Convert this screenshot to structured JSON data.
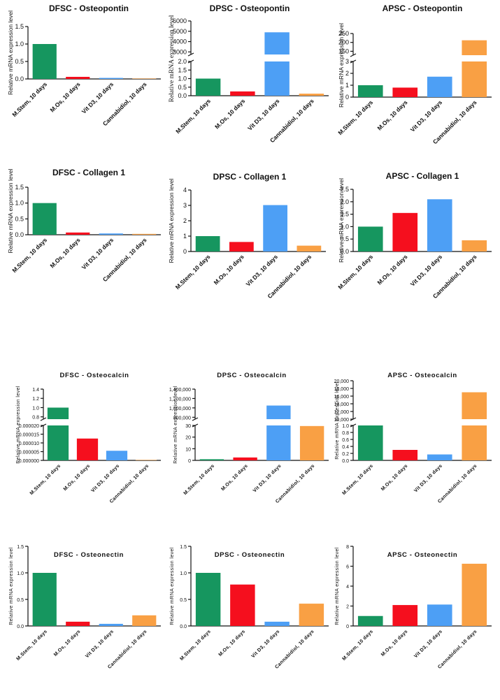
{
  "colors": {
    "M.Stem": "#16965f",
    "M.Os": "#f50f1e",
    "Vit D3": "#4d9ff5",
    "Cannabidiol": "#f9a044"
  },
  "chart_data": [
    {
      "type": "bar",
      "title": "DFSC - Osteopontin",
      "ylabel": "Relative mRNA expression level",
      "categories": [
        "M.Stem, 10 days",
        "M.Os, 10 days",
        "Vit D3, 10 days",
        "Cannabidiol, 10 days"
      ],
      "values": [
        1.0,
        0.06,
        0.03,
        0.0
      ],
      "ylim": [
        0,
        1.5
      ],
      "ticks": [
        {
          "v": 0,
          "t": "0.0"
        },
        {
          "v": 0.5,
          "t": "0.5"
        },
        {
          "v": 1,
          "t": "1.0"
        },
        {
          "v": 1.5,
          "t": "1.5"
        }
      ]
    },
    {
      "type": "bar",
      "title": "DPSC - Osteopontin",
      "ylabel": "Relative mRNA expression level",
      "categories": [
        "M.Stem, 10 days",
        "M.Os, 10 days",
        "Vit D3, 10 days",
        "Cannabidiol, 10 days"
      ],
      "values": [
        1.0,
        0.25,
        4900,
        0.12
      ],
      "ylim": [
        0,
        6000
      ],
      "ticks": [
        {
          "v": 0,
          "t": "0.0"
        },
        {
          "v": 0.5,
          "t": "0.5"
        },
        {
          "v": 1,
          "t": "1.0"
        },
        {
          "v": 1.5,
          "t": "1.5"
        },
        {
          "v": 2,
          "t": "2.0"
        },
        {
          "v": 3000,
          "t": "3000"
        },
        {
          "v": 4000,
          "t": "4000"
        },
        {
          "v": 5000,
          "t": "5000"
        },
        {
          "v": 6000,
          "t": "6000"
        }
      ],
      "axis_break": [
        2,
        2750
      ]
    },
    {
      "type": "bar",
      "title": "APSC - Osteopontin",
      "ylabel": "Relative mRNA expression level",
      "categories": [
        "M.Stem, 10 days",
        "M.Os, 10 days",
        "Vit D3, 10 days",
        "Cannabidiol, 10 days"
      ],
      "values": [
        1.0,
        0.8,
        1.72,
        212
      ],
      "ylim": [
        0,
        250
      ],
      "ticks": [
        {
          "v": 0,
          "t": "0"
        },
        {
          "v": 1,
          "t": "1"
        },
        {
          "v": 2,
          "t": "2"
        },
        {
          "v": 3,
          "t": "3"
        },
        {
          "v": 150,
          "t": "150"
        },
        {
          "v": 200,
          "t": "200"
        },
        {
          "v": 250,
          "t": "250"
        }
      ],
      "axis_break": [
        3,
        128
      ]
    },
    {
      "type": "bar",
      "title": "DFSC - Collagen 1",
      "ylabel": "Relative mRNA expression level",
      "categories": [
        "M.Stem, 10 days",
        "M.Os, 10 days",
        "Vit D3, 10 days",
        "Cannabidiol, 10 days"
      ],
      "values": [
        1.0,
        0.07,
        0.04,
        0.02
      ],
      "ylim": [
        0,
        1.5
      ],
      "ticks": [
        {
          "v": 0,
          "t": "0.0"
        },
        {
          "v": 0.5,
          "t": "0.5"
        },
        {
          "v": 1,
          "t": "1.0"
        },
        {
          "v": 1.5,
          "t": "1.5"
        }
      ]
    },
    {
      "type": "bar",
      "title": "DPSC - Collagen 1",
      "ylabel": "Relative mRNA expression level",
      "categories": [
        "M.Stem, 10 days",
        "M.Os, 10 days",
        "Vit D3, 10 days",
        "Cannabidiol, 10 days"
      ],
      "values": [
        1.0,
        0.62,
        3.02,
        0.38
      ],
      "ylim": [
        0,
        4
      ],
      "ticks": [
        {
          "v": 0,
          "t": "0"
        },
        {
          "v": 1,
          "t": "1"
        },
        {
          "v": 2,
          "t": "2"
        },
        {
          "v": 3,
          "t": "3"
        },
        {
          "v": 4,
          "t": "4"
        }
      ]
    },
    {
      "type": "bar",
      "title": "APSC - Collagen 1",
      "ylabel": "Relative mRNA expression level",
      "categories": [
        "M.Stem, 10 days",
        "M.Os, 10 days",
        "Vit D3, 10 days",
        "Cannabidiol, 10 days"
      ],
      "values": [
        1.0,
        1.55,
        2.1,
        0.45
      ],
      "ylim": [
        0,
        2.5
      ],
      "ticks": [
        {
          "v": 0,
          "t": "0.0"
        },
        {
          "v": 0.5,
          "t": "0.5"
        },
        {
          "v": 1,
          "t": "1.0"
        },
        {
          "v": 1.5,
          "t": "1.5"
        },
        {
          "v": 2,
          "t": "2.0"
        },
        {
          "v": 2.5,
          "t": "2.5"
        }
      ]
    },
    {
      "type": "bar",
      "title": "DFSC - Osteocalcin",
      "ylabel": "Relative mRNA expression level",
      "categories": [
        "M.Stem, 10 days",
        "M.Os, 10 days",
        "Vit D3, 10 days",
        "Cannabidiol, 10 days"
      ],
      "values": [
        1.0,
        1.25e-05,
        5.5e-06,
        0.0
      ],
      "ylim": [
        0,
        1.4
      ],
      "ticks": [
        {
          "v": 0,
          "t": "0.000000"
        },
        {
          "v": 5e-06,
          "t": "0.000005"
        },
        {
          "v": 1e-05,
          "t": "0.000010"
        },
        {
          "v": 1.5e-05,
          "t": "0.000015"
        },
        {
          "v": 2e-05,
          "t": "0.000020"
        },
        {
          "v": 0.8,
          "t": "0.8"
        },
        {
          "v": 1.0,
          "t": "1.0"
        },
        {
          "v": 1.2,
          "t": "1.2"
        },
        {
          "v": 1.4,
          "t": "1.4"
        }
      ],
      "axis_break": [
        2e-05,
        0.75
      ]
    },
    {
      "type": "bar",
      "title": "DPSC - Osteocalcin",
      "ylabel": "Relative mRNA expression level",
      "categories": [
        "M.Stem, 10 days",
        "M.Os, 10 days",
        "Vit D3, 10 days",
        "Cannabidiol, 10 days"
      ],
      "values": [
        1.0,
        2.5,
        1050000,
        29.5
      ],
      "ylim": [
        0,
        1400000
      ],
      "ticks": [
        {
          "v": 0,
          "t": "0"
        },
        {
          "v": 10,
          "t": "10"
        },
        {
          "v": 20,
          "t": "20"
        },
        {
          "v": 30,
          "t": "30"
        },
        {
          "v": 800000,
          "t": "800,000"
        },
        {
          "v": 1000000,
          "t": "1,000,000"
        },
        {
          "v": 1200000,
          "t": "1,200,000"
        },
        {
          "v": 1400000,
          "t": "1,400,000"
        }
      ],
      "axis_break": [
        30,
        760000
      ]
    },
    {
      "type": "bar",
      "title": "APSC - Osteocalcin",
      "ylabel": "Relative mRNA expression level",
      "categories": [
        "M.Stem, 10 days",
        "M.Os, 10 days",
        "Vit D3, 10 days",
        "Cannabidiol, 10 days"
      ],
      "values": [
        1.0,
        0.3,
        0.17,
        17000
      ],
      "ylim": [
        0,
        20000
      ],
      "ticks": [
        {
          "v": 0,
          "t": "0.0"
        },
        {
          "v": 0.2,
          "t": "0.2"
        },
        {
          "v": 0.4,
          "t": "0.4"
        },
        {
          "v": 0.6,
          "t": "0.6"
        },
        {
          "v": 0.8,
          "t": "0.8"
        },
        {
          "v": 1.0,
          "t": "1.0"
        },
        {
          "v": 10000,
          "t": "10,000"
        },
        {
          "v": 12000,
          "t": "12,000"
        },
        {
          "v": 14000,
          "t": "14,000"
        },
        {
          "v": 16000,
          "t": "16,000"
        },
        {
          "v": 18000,
          "t": "18,000"
        },
        {
          "v": 20000,
          "t": "20,000"
        }
      ],
      "axis_break": [
        1.0,
        10000
      ]
    },
    {
      "type": "bar",
      "title": "DFSC - Osteonectin",
      "ylabel": "Relative mRNA expression level",
      "categories": [
        "M.Stem, 10 days",
        "M.Os, 10 days",
        "Vit D3, 10 days",
        "Cannabidiol, 10 days"
      ],
      "values": [
        1.0,
        0.08,
        0.04,
        0.2
      ],
      "ylim": [
        0,
        1.5
      ],
      "ticks": [
        {
          "v": 0,
          "t": "0.0"
        },
        {
          "v": 0.5,
          "t": "0.5"
        },
        {
          "v": 1,
          "t": "1.0"
        },
        {
          "v": 1.5,
          "t": "1.5"
        }
      ]
    },
    {
      "type": "bar",
      "title": "DPSC - Osteonectin",
      "ylabel": "Relative mRNA expression level",
      "categories": [
        "M.Stem, 10 days",
        "M.Os, 10 days",
        "Vit D3, 10 days",
        "Cannabidiol, 10 days"
      ],
      "values": [
        1.0,
        0.78,
        0.08,
        0.42
      ],
      "ylim": [
        0,
        1.5
      ],
      "ticks": [
        {
          "v": 0,
          "t": "0.0"
        },
        {
          "v": 0.5,
          "t": "0.5"
        },
        {
          "v": 1,
          "t": "1.0"
        },
        {
          "v": 1.5,
          "t": "1.5"
        }
      ]
    },
    {
      "type": "bar",
      "title": "APSC - Osteonectin",
      "ylabel": "Relative mRNA expression level",
      "categories": [
        "M.Stem, 10 days",
        "M.Os, 10 days",
        "Vit D3, 10 days",
        "Cannabidiol, 10 days"
      ],
      "values": [
        1.0,
        2.1,
        2.15,
        6.25
      ],
      "ylim": [
        0,
        8
      ],
      "ticks": [
        {
          "v": 0,
          "t": "0"
        },
        {
          "v": 2,
          "t": "2"
        },
        {
          "v": 4,
          "t": "4"
        },
        {
          "v": 6,
          "t": "6"
        },
        {
          "v": 8,
          "t": "8"
        }
      ]
    }
  ]
}
